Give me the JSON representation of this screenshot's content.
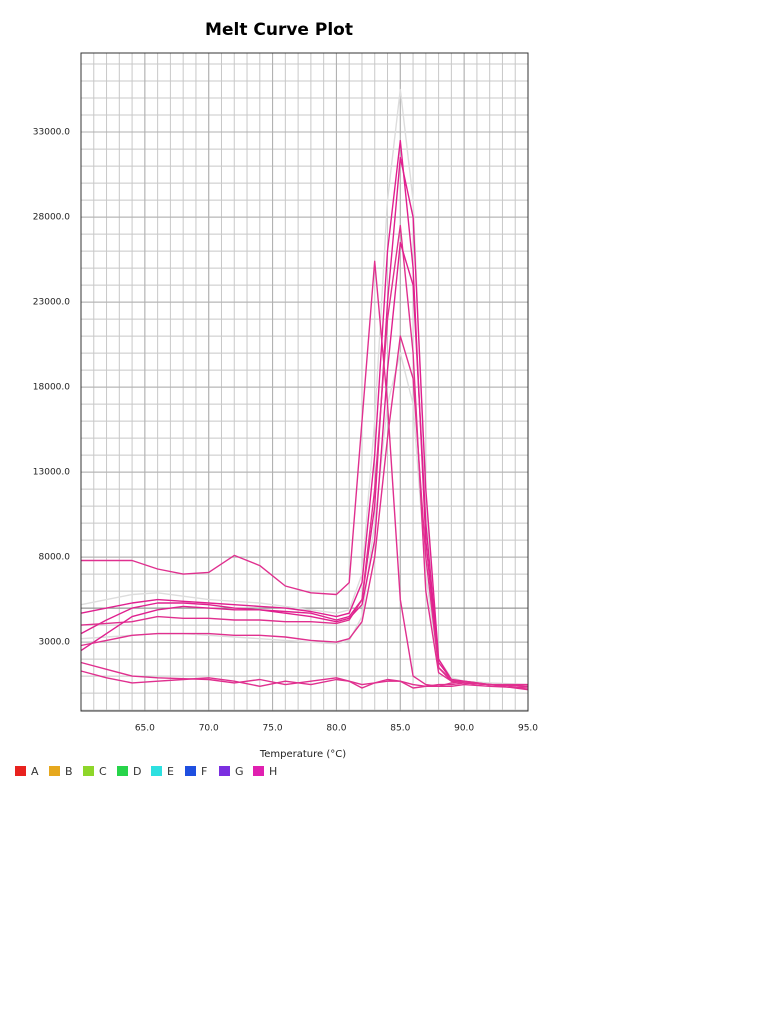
{
  "chart_data": {
    "type": "line",
    "title": "Melt Curve Plot",
    "x_label": "Temperature (°C)",
    "xlim": [
      60,
      95
    ],
    "ylim": [
      -1050,
      37650
    ],
    "xticks": [
      {
        "value": 65,
        "label": "65.0"
      },
      {
        "value": 70,
        "label": "70.0"
      },
      {
        "value": 75,
        "label": "75.0"
      },
      {
        "value": 80,
        "label": "80.0"
      },
      {
        "value": 85,
        "label": "85.0"
      },
      {
        "value": 90,
        "label": "90.0"
      },
      {
        "value": 95,
        "label": "95.0"
      }
    ],
    "yticks": [
      {
        "value": 3000,
        "label": "3000.0"
      },
      {
        "value": 8000,
        "label": "8000.0"
      },
      {
        "value": 13000,
        "label": "13000.0"
      },
      {
        "value": 18000,
        "label": "18000.0"
      },
      {
        "value": 23000,
        "label": "23000.0"
      },
      {
        "value": 28000,
        "label": "28000.0"
      },
      {
        "value": 33000,
        "label": "33000.0"
      }
    ],
    "grid": true,
    "threshold": 5000,
    "legend": [
      {
        "name": "A",
        "color": "#e8221e"
      },
      {
        "name": "B",
        "color": "#e6a81e"
      },
      {
        "name": "C",
        "color": "#8ed62a"
      },
      {
        "name": "D",
        "color": "#27d44a"
      },
      {
        "name": "E",
        "color": "#2de0e0"
      },
      {
        "name": "F",
        "color": "#1f4fe0"
      },
      {
        "name": "G",
        "color": "#7b2fe0"
      },
      {
        "name": "H",
        "color": "#e020b0"
      }
    ],
    "x": [
      60,
      62,
      64,
      66,
      68,
      70,
      72,
      74,
      76,
      78,
      80,
      81,
      82,
      83,
      84,
      85,
      86,
      87,
      88,
      89,
      90,
      92,
      95
    ],
    "series": [
      {
        "color": "#dddddd",
        "values": [
          5200,
          5500,
          5800,
          5900,
          5700,
          5500,
          5400,
          5300,
          5100,
          4900,
          4700,
          4900,
          7000,
          16000,
          29000,
          35500,
          29000,
          11000,
          2000,
          900,
          700,
          600,
          500
        ]
      },
      {
        "color": "#dddddd",
        "values": [
          3200,
          3300,
          3400,
          3500,
          3500,
          3400,
          3300,
          3200,
          3100,
          3000,
          2900,
          3100,
          4500,
          10000,
          17000,
          20000,
          17000,
          7000,
          1500,
          800,
          600,
          500,
          400
        ]
      },
      {
        "color": "#e0308f",
        "values": [
          7800,
          7800,
          7800,
          7300,
          7000,
          7100,
          8100,
          7500,
          6300,
          5900,
          5800,
          6500,
          16000,
          25400,
          17000,
          5500,
          1000,
          500,
          400,
          400,
          500,
          400,
          300
        ]
      },
      {
        "color": "#e0208f",
        "values": [
          4700,
          5000,
          5300,
          5500,
          5400,
          5300,
          5200,
          5100,
          5000,
          4800,
          4500,
          4700,
          6500,
          14000,
          26000,
          32500,
          25000,
          9000,
          1500,
          700,
          600,
          500,
          400
        ]
      },
      {
        "color": "#e0208f",
        "values": [
          3500,
          4300,
          5000,
          5300,
          5300,
          5200,
          5000,
          4900,
          4800,
          4700,
          4300,
          4500,
          5500,
          11000,
          23000,
          31500,
          28000,
          12000,
          2000,
          800,
          700,
          500,
          400
        ]
      },
      {
        "color": "#e0308f",
        "values": [
          4000,
          4100,
          4200,
          4500,
          4400,
          4400,
          4300,
          4300,
          4200,
          4200,
          4100,
          4300,
          5500,
          12000,
          22000,
          27500,
          20000,
          6000,
          1200,
          700,
          600,
          500,
          400
        ]
      },
      {
        "color": "#e0208f",
        "values": [
          2500,
          3500,
          4500,
          4900,
          5100,
          5000,
          4900,
          4900,
          4700,
          4500,
          4200,
          4400,
          5200,
          9000,
          19000,
          26500,
          24000,
          10000,
          1800,
          800,
          600,
          500,
          400
        ]
      },
      {
        "color": "#e0308f",
        "values": [
          2800,
          3100,
          3400,
          3500,
          3500,
          3500,
          3400,
          3400,
          3300,
          3100,
          3000,
          3200,
          4200,
          8000,
          15000,
          21000,
          18500,
          8000,
          1500,
          800,
          600,
          500,
          400
        ]
      },
      {
        "color": "#e0308f",
        "values": [
          1800,
          1400,
          1000,
          900,
          850,
          800,
          600,
          800,
          500,
          700,
          900,
          700,
          500,
          600,
          800,
          700,
          300,
          400,
          500,
          500,
          600,
          500,
          200
        ]
      },
      {
        "color": "#e0308f",
        "values": [
          1300,
          900,
          600,
          700,
          800,
          900,
          700,
          400,
          700,
          500,
          800,
          700,
          300,
          600,
          700,
          700,
          500,
          400,
          400,
          600,
          700,
          500,
          500
        ]
      }
    ]
  }
}
